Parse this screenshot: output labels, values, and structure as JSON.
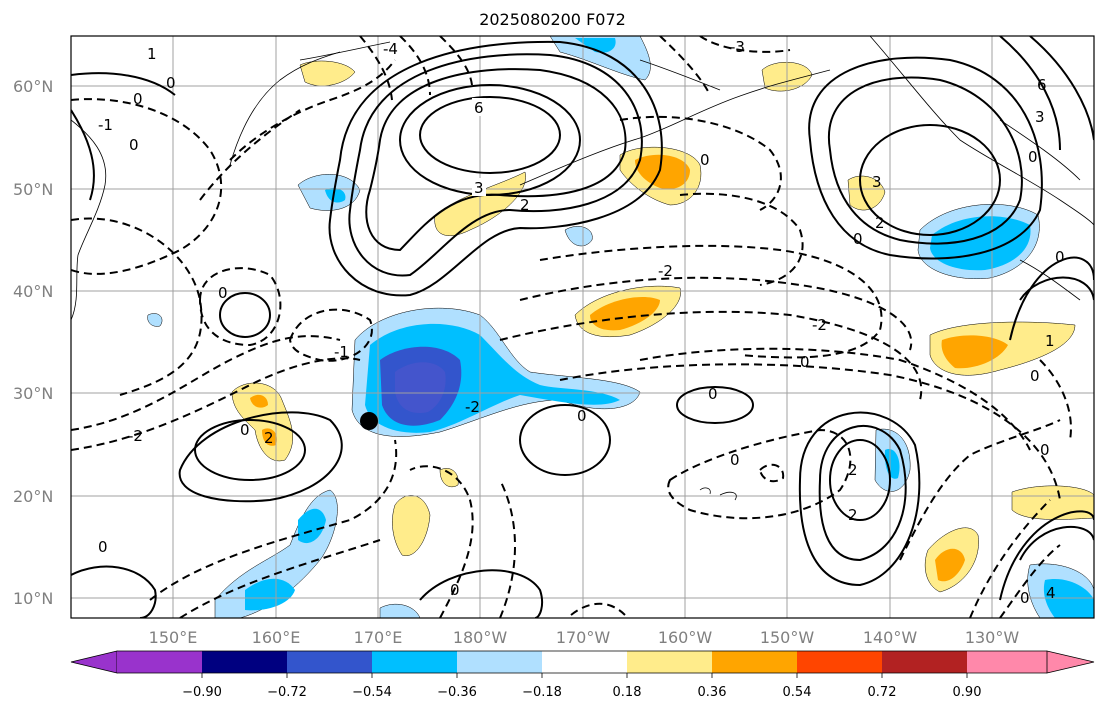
{
  "title": "2025080200 F072",
  "lat_labels": [
    "60°N",
    "50°N",
    "40°N",
    "30°N",
    "20°N",
    "10°N"
  ],
  "lon_labels": [
    "150°E",
    "160°E",
    "170°E",
    "180°W",
    "170°W",
    "160°W",
    "150°W",
    "140°W",
    "130°W"
  ],
  "colorbar": {
    "ticks": [
      "−0.90",
      "−0.72",
      "−0.54",
      "−0.36",
      "−0.18",
      "0.18",
      "0.36",
      "0.54",
      "0.72",
      "0.90"
    ],
    "colors": [
      "#9933cc",
      "#000080",
      "#3355cc",
      "#00bfff",
      "#b0e0ff",
      "#ffffff",
      "#ffec8b",
      "#ffa500",
      "#ff4500",
      "#b22222",
      "#ff88aa"
    ]
  },
  "contour_labels": [
    "0",
    "1",
    "2",
    "3",
    "4",
    "6",
    "-1",
    "-2",
    "-3",
    "-4"
  ],
  "colors": {
    "grid": "#a0a0a0",
    "coast": "#000000"
  }
}
